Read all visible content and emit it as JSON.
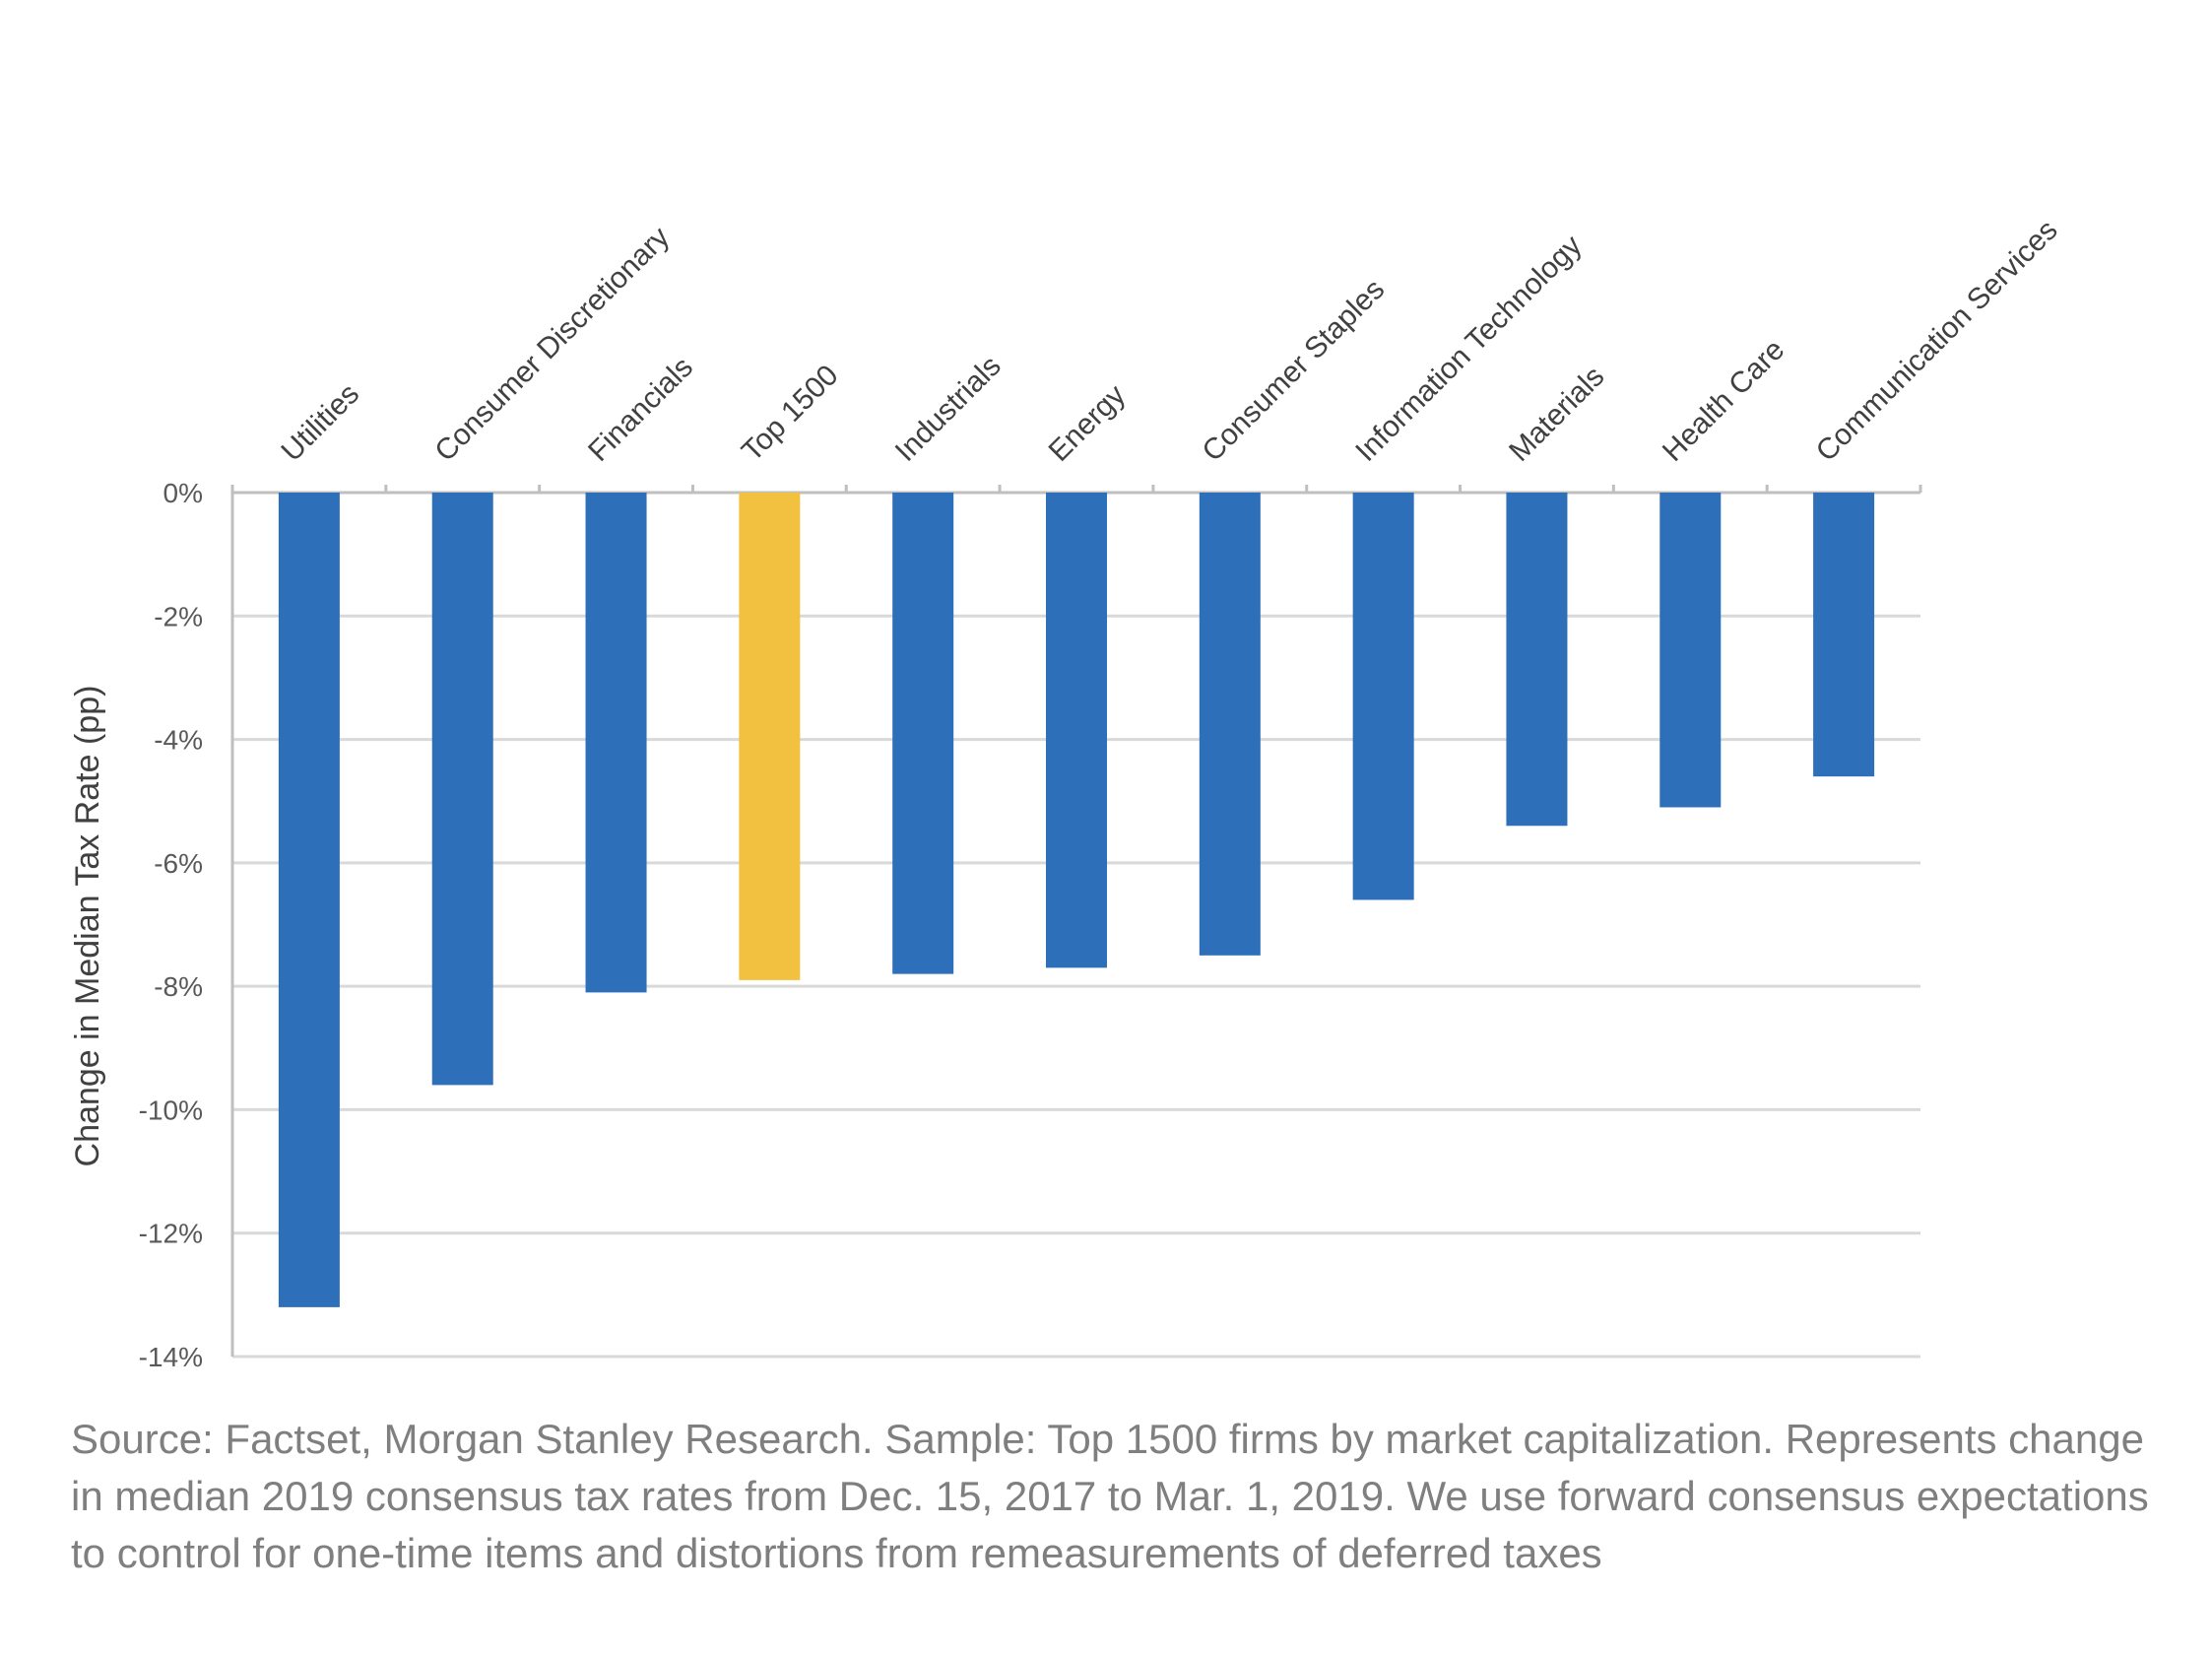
{
  "chart_data": {
    "type": "bar",
    "title": "",
    "xlabel": "",
    "ylabel": "Change in Median Tax Rate (pp)",
    "ylim": [
      -14,
      0
    ],
    "y_ticks": [
      0,
      -2,
      -4,
      -6,
      -8,
      -10,
      -12,
      -14
    ],
    "y_tick_labels": [
      "0%",
      "-2%",
      "-4%",
      "-6%",
      "-8%",
      "-10%",
      "-12%",
      "-14%"
    ],
    "categories": [
      "Utilities",
      "Consumer Discretionary",
      "Financials",
      "Top 1500",
      "Industrials",
      "Energy",
      "Consumer Staples",
      "Information Technology",
      "Materials",
      "Health Care",
      "Communication Services"
    ],
    "values": [
      -13.2,
      -9.6,
      -8.1,
      -7.9,
      -7.8,
      -7.7,
      -7.5,
      -6.6,
      -5.4,
      -5.1,
      -4.6
    ],
    "highlight_category": "Top 1500",
    "grid": true,
    "category_label_position": "top, rotated"
  },
  "colors": {
    "bar": "#2e6fba",
    "highlight": "#f2c140",
    "grid": "#d9d9d9",
    "axis": "#bfbfbf"
  },
  "source_text": "Source: Factset, Morgan Stanley Research. Sample: Top 1500 firms by market capitalization. Represents change in median 2019 consensus tax rates from Dec. 15, 2017 to Mar. 1, 2019. We use forward consensus expectations to control for one-time items and distortions from remeasurements of deferred taxes"
}
